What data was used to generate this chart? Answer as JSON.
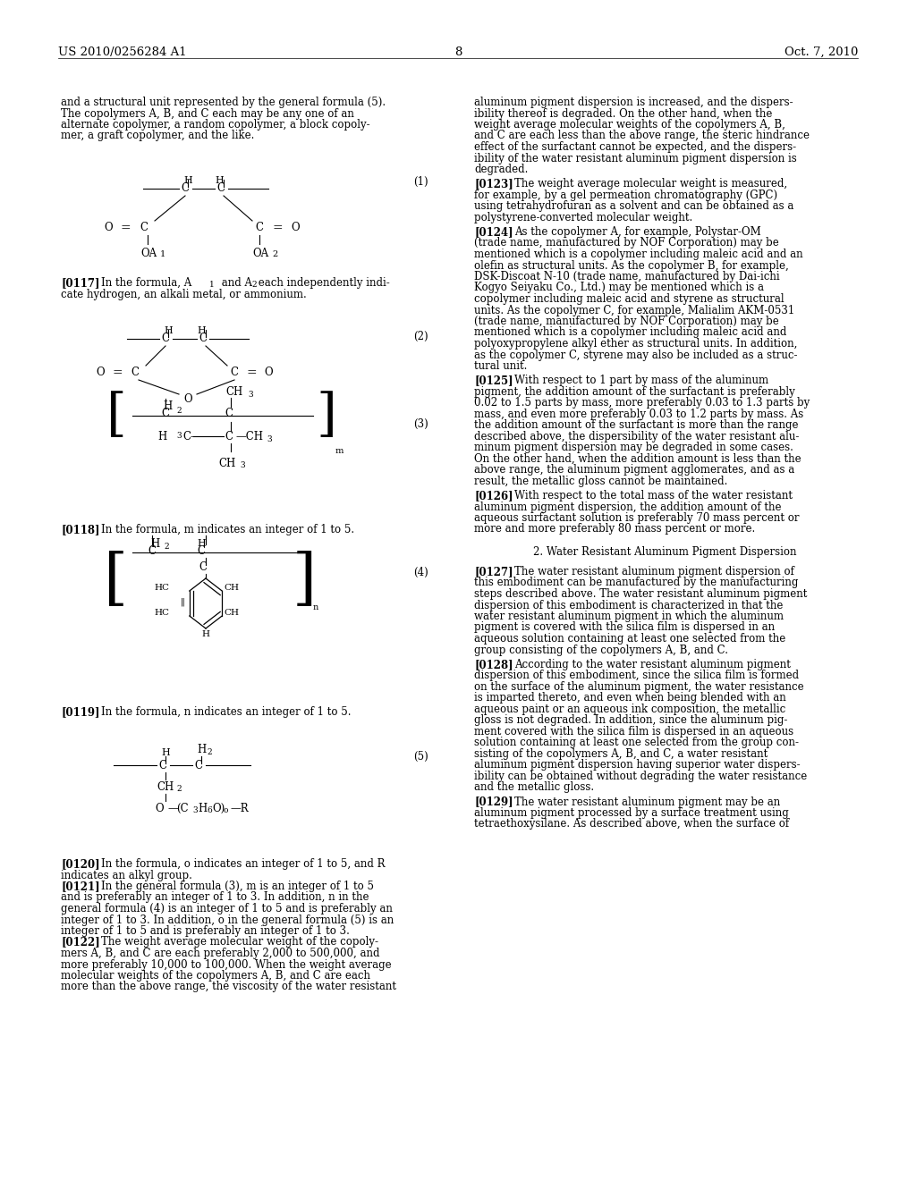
{
  "page_number": "8",
  "header_left": "US 2010/0256284 A1",
  "header_right": "Oct. 7, 2010",
  "background_color": "#ffffff"
}
